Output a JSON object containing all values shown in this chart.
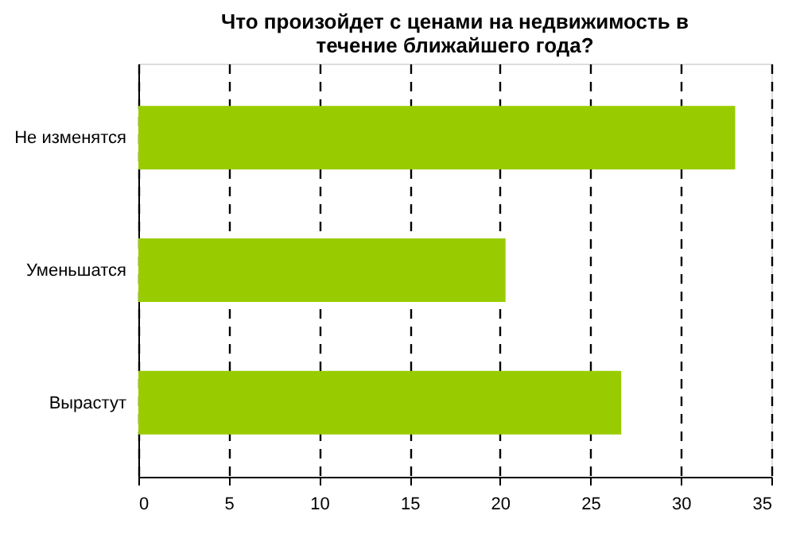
{
  "chart_data": {
    "type": "bar",
    "orientation": "horizontal",
    "title": "Что произойдет с ценами на недвижимость в течение ближайшего года?",
    "categories": [
      "Не изменятся",
      "Уменьшатся",
      "Вырастут"
    ],
    "values": [
      33.0,
      20.3,
      26.7
    ],
    "color": "#99cc00",
    "xlim": [
      0,
      35
    ],
    "xticks": [
      0,
      5,
      10,
      15,
      20,
      25,
      30,
      35
    ],
    "grid": "x"
  }
}
